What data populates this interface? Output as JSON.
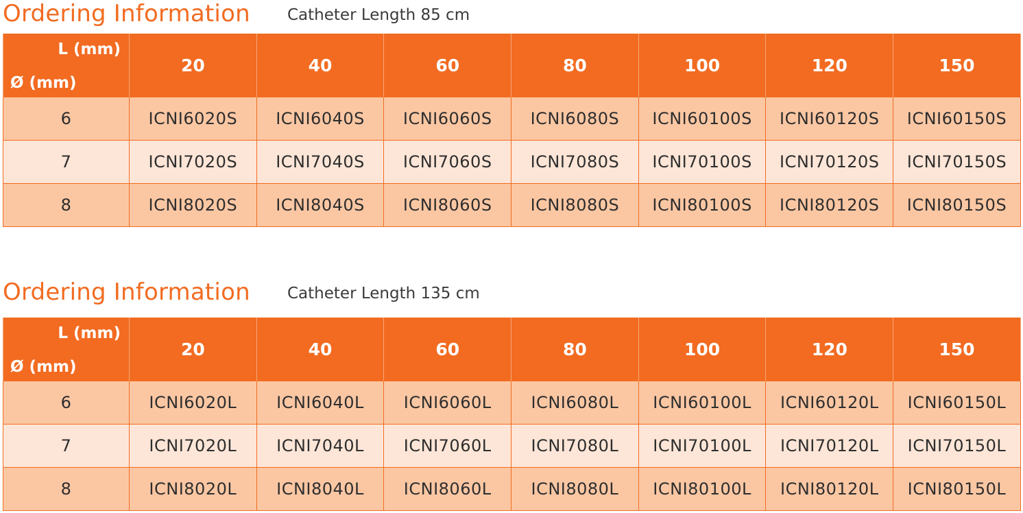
{
  "sections": [
    {
      "title": "Ordering Information",
      "subtitle": "Catheter Length 85 cm",
      "corner_length_label": "L (mm)",
      "corner_diameter_label": "Ø (mm)",
      "lengths": [
        "20",
        "40",
        "60",
        "80",
        "100",
        "120",
        "150"
      ],
      "rows": [
        {
          "diameter": "6",
          "codes": [
            "ICNI6020S",
            "ICNI6040S",
            "ICNI6060S",
            "ICNI6080S",
            "ICNI60100S",
            "ICNI60120S",
            "ICNI60150S"
          ]
        },
        {
          "diameter": "7",
          "codes": [
            "ICNI7020S",
            "ICNI7040S",
            "ICNI7060S",
            "ICNI7080S",
            "ICNI70100S",
            "ICNI70120S",
            "ICNI70150S"
          ]
        },
        {
          "diameter": "8",
          "codes": [
            "ICNI8020S",
            "ICNI8040S",
            "ICNI8060S",
            "ICNI8080S",
            "ICNI80100S",
            "ICNI80120S",
            "ICNI80150S"
          ]
        }
      ]
    },
    {
      "title": "Ordering Information",
      "subtitle": "Catheter Length 135 cm",
      "corner_length_label": "L (mm)",
      "corner_diameter_label": "Ø (mm)",
      "lengths": [
        "20",
        "40",
        "60",
        "80",
        "100",
        "120",
        "150"
      ],
      "rows": [
        {
          "diameter": "6",
          "codes": [
            "ICNI6020L",
            "ICNI6040L",
            "ICNI6060L",
            "ICNI6080L",
            "ICNI60100L",
            "ICNI60120L",
            "ICNI60150L"
          ]
        },
        {
          "diameter": "7",
          "codes": [
            "ICNI7020L",
            "ICNI7040L",
            "ICNI7060L",
            "ICNI7080L",
            "ICNI70100L",
            "ICNI70120L",
            "ICNI70150L"
          ]
        },
        {
          "diameter": "8",
          "codes": [
            "ICNI8020L",
            "ICNI8040L",
            "ICNI8060L",
            "ICNI8080L",
            "ICNI80100L",
            "ICNI80120L",
            "ICNI80150L"
          ]
        }
      ]
    }
  ],
  "colors": {
    "accent": "#f26b21",
    "row_dark": "#fbc7a3",
    "row_light": "#fde6d7",
    "subtitle_text": "#3b3b3b"
  }
}
